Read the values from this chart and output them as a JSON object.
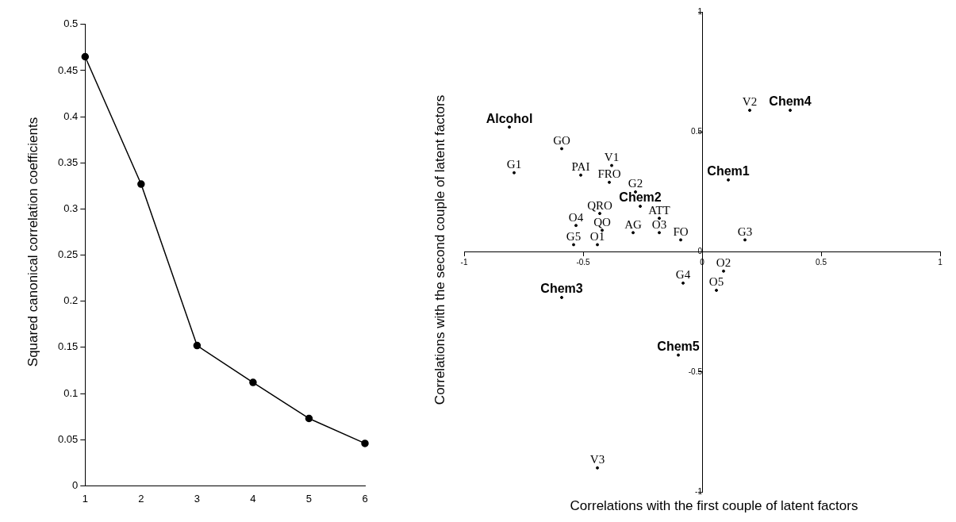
{
  "chart_data": [
    {
      "type": "line",
      "ylabel": "Squared canonical correlation coefficients",
      "categories": [
        "1",
        "2",
        "3",
        "4",
        "5",
        "6"
      ],
      "values": [
        0.465,
        0.327,
        0.152,
        0.112,
        0.073,
        0.046
      ],
      "color": "#000000",
      "marker": "circle",
      "line_style": "solid",
      "ylim": [
        0,
        0.5
      ],
      "yticks": [
        0,
        0.05,
        0.1,
        0.15,
        0.2,
        0.25,
        0.3,
        0.35,
        0.4,
        0.45,
        0.5
      ],
      "grid": false,
      "legend": false
    },
    {
      "type": "scatter",
      "xlabel": "Correlations with the first couple of latent factors",
      "ylabel": "Correlations with the second couple of latent factors",
      "marker": "circle",
      "grid": false,
      "legend": false,
      "xlim": [
        -1,
        1
      ],
      "ylim": [
        -1,
        1
      ],
      "xticks": [
        -1,
        -0.5,
        0,
        0.5,
        1
      ],
      "yticks": [
        -1,
        -0.5,
        0,
        0.5,
        1
      ],
      "series": [
        {
          "color": "#000000",
          "x": [
            -0.59,
            -0.79,
            -0.51,
            -0.38,
            -0.39,
            -0.28,
            -0.43,
            -0.18,
            -0.53,
            -0.42,
            -0.29,
            -0.18,
            -0.09,
            0.18,
            -0.54,
            -0.44,
            0.09,
            -0.08,
            0.06,
            -0.44,
            0.2
          ],
          "values": [
            0.43,
            0.33,
            0.32,
            0.36,
            0.29,
            0.25,
            0.16,
            0.14,
            0.11,
            0.09,
            0.08,
            0.08,
            0.05,
            0.05,
            0.03,
            0.03,
            -0.08,
            -0.13,
            -0.16,
            -0.9,
            0.59
          ],
          "value_labels": [
            "GO",
            "G1",
            "PAI",
            "V1",
            "FRO",
            "G2",
            "QRO",
            "ATT",
            "O4",
            "QO",
            "AG",
            "O3",
            "FO",
            "G3",
            "G5",
            "O1",
            "O2",
            "G4",
            "O5",
            "V3",
            "V2"
          ]
        },
        {
          "color": "#000000",
          "x": [
            -0.81,
            0.11,
            -0.26,
            -0.59,
            -0.1,
            0.37
          ],
          "values": [
            0.52,
            0.3,
            0.19,
            -0.19,
            -0.43,
            0.59
          ],
          "value_labels": [
            "Alcohol",
            "Chem1",
            "Chem2",
            "Chem3",
            "Chem5",
            "Chem4"
          ]
        }
      ]
    }
  ]
}
